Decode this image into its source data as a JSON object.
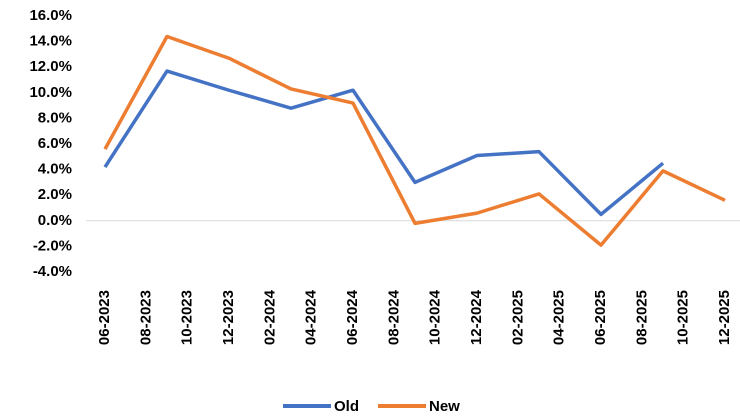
{
  "chart_data": {
    "type": "line",
    "x": [
      "06-2023",
      "09-2023",
      "12-2023",
      "03-2024",
      "06-2024",
      "09-2024",
      "12-2024",
      "03-2025",
      "06-2025",
      "09-2025",
      "12-2025"
    ],
    "xlim": [
      "06-2023",
      "12-2025"
    ],
    "xticks": [
      "06-2023",
      "08-2023",
      "10-2023",
      "12-2023",
      "02-2024",
      "04-2024",
      "06-2024",
      "08-2024",
      "10-2024",
      "12-2024",
      "02-2025",
      "04-2025",
      "06-2025",
      "08-2025",
      "10-2025",
      "12-2025"
    ],
    "series": [
      {
        "name": "Old",
        "color": "#4472c4",
        "values": [
          4.2,
          11.7,
          10.2,
          8.8,
          10.2,
          3.0,
          5.1,
          5.4,
          0.5,
          4.5,
          null
        ]
      },
      {
        "name": "New",
        "color": "#ed7d31",
        "values": [
          5.6,
          14.4,
          12.7,
          10.3,
          9.2,
          -0.2,
          0.6,
          2.1,
          -1.9,
          3.9,
          1.6
        ]
      }
    ],
    "ylim": [
      -4,
      16
    ],
    "yticks": [
      {
        "value": -4,
        "label": "-4.0%"
      },
      {
        "value": -2,
        "label": "-2.0%"
      },
      {
        "value": 0,
        "label": "0.0%"
      },
      {
        "value": 2,
        "label": "2.0%"
      },
      {
        "value": 4,
        "label": "4.0%"
      },
      {
        "value": 6,
        "label": "6.0%"
      },
      {
        "value": 8,
        "label": "8.0%"
      },
      {
        "value": 10,
        "label": "10.0%"
      },
      {
        "value": 12,
        "label": "12.0%"
      },
      {
        "value": 14,
        "label": "14.0%"
      },
      {
        "value": 16,
        "label": "16.0%"
      }
    ],
    "legend": "bottom"
  }
}
